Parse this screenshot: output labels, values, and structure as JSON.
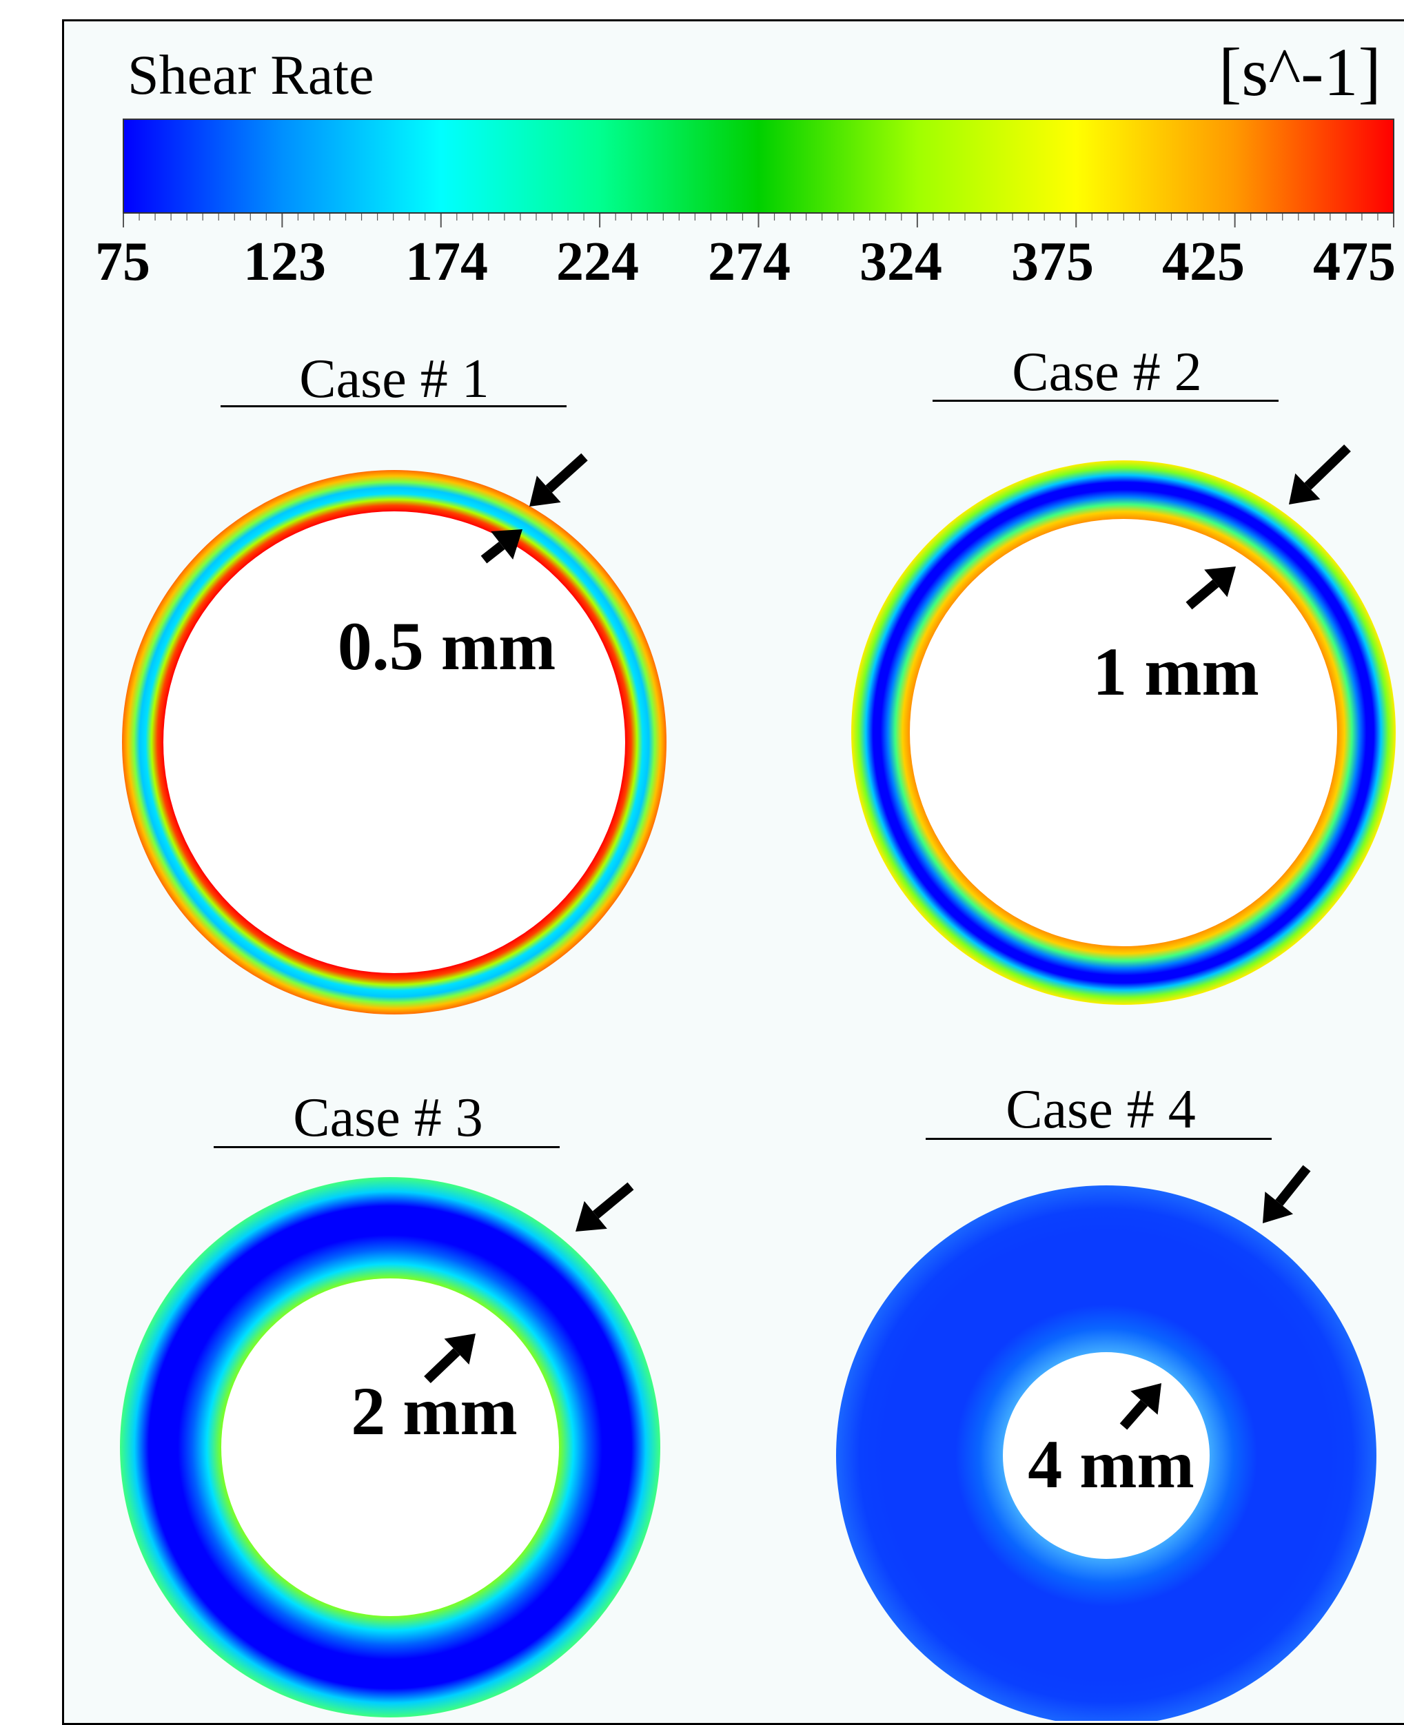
{
  "legend": {
    "title": "Shear Rate",
    "unit": "[s^-1]",
    "min": 75,
    "max": 475,
    "tick_labels": [
      "75",
      "123",
      "174",
      "224",
      "274",
      "324",
      "375",
      "425",
      "475"
    ],
    "colors": [
      "#0000ff",
      "#0090ff",
      "#00ffff",
      "#00ff90",
      "#00d000",
      "#a0ff00",
      "#ffff00",
      "#ff9900",
      "#ff0000"
    ]
  },
  "cases": [
    {
      "title": "Case # 1",
      "gap_label": "0.5 mm",
      "ring_colors": [
        "#ff6a00",
        "#ffc000",
        "#7fff40",
        "#00c8ff",
        "#00e0ff",
        "#b0ff00",
        "#ff4000",
        "#ff0000"
      ]
    },
    {
      "title": "Case # 2",
      "gap_label": "1 mm",
      "ring_colors": [
        "#ffee00",
        "#80ff20",
        "#00c8ff",
        "#0000ff",
        "#0000ff",
        "#0080ff",
        "#40ff80",
        "#ffd000",
        "#ff9000"
      ]
    },
    {
      "title": "Case # 3",
      "gap_label": "2 mm",
      "ring_colors": [
        "#40ff80",
        "#00d0ff",
        "#0000ff",
        "#0000ff",
        "#0000ff",
        "#0060ff",
        "#00e0ff",
        "#7fff20"
      ]
    },
    {
      "title": "Case # 4",
      "gap_label": "4 mm",
      "ring_colors": [
        "#1a66ff",
        "#0a40ff",
        "#0a3cff",
        "#0a3cff",
        "#0a3cff",
        "#0a3cff",
        "#0a66ff",
        "#40aaff"
      ]
    }
  ]
}
